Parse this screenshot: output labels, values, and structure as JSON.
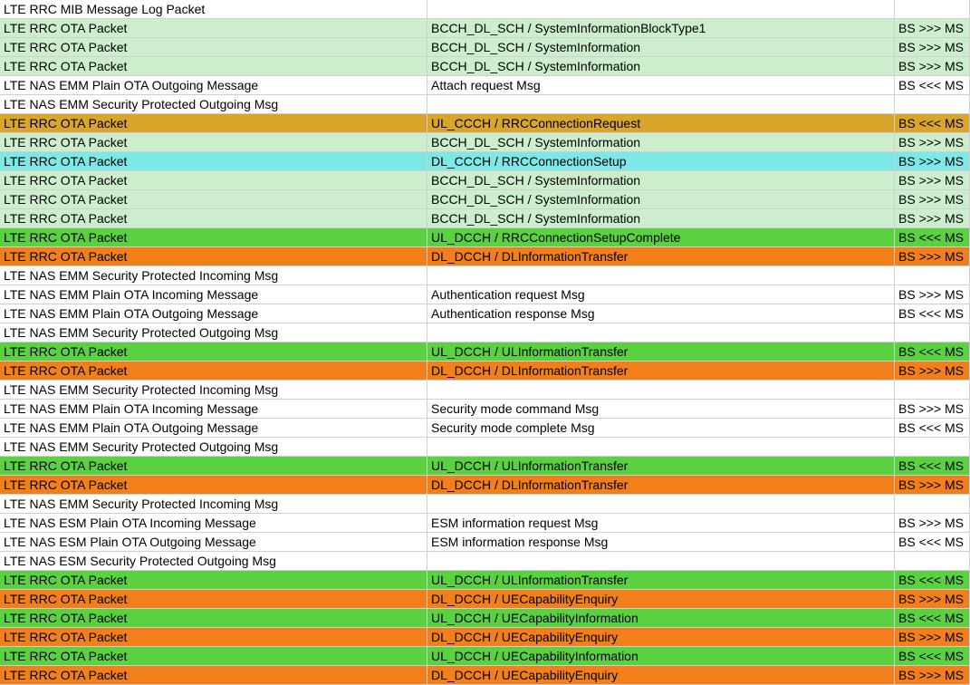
{
  "colors": {
    "white": "#ffffff",
    "paleGreen": "#cceecc",
    "gold": "#d9a52b",
    "cyan": "#7de8e8",
    "brightGreen": "#5ad141",
    "orange": "#f27f1a",
    "text": "#000000"
  },
  "columns": [
    "msg_type",
    "detail",
    "direction"
  ],
  "rows": [
    {
      "bg": "white",
      "c1": "LTE RRC MIB Message Log Packet",
      "c2": "",
      "c3": ""
    },
    {
      "bg": "paleGreen",
      "c1": "LTE RRC OTA Packet",
      "c2": "BCCH_DL_SCH / SystemInformationBlockType1",
      "c3": "BS >>> MS"
    },
    {
      "bg": "paleGreen",
      "c1": "LTE RRC OTA Packet",
      "c2": "BCCH_DL_SCH / SystemInformation",
      "c3": "BS >>> MS"
    },
    {
      "bg": "paleGreen",
      "c1": "LTE RRC OTA Packet",
      "c2": "BCCH_DL_SCH / SystemInformation",
      "c3": "BS >>> MS"
    },
    {
      "bg": "white",
      "c1": "LTE NAS EMM Plain OTA Outgoing Message",
      "c2": "Attach request Msg",
      "c3": "BS <<< MS"
    },
    {
      "bg": "white",
      "c1": "LTE NAS EMM Security Protected Outgoing Msg",
      "c2": "",
      "c3": ""
    },
    {
      "bg": "gold",
      "c1": "LTE RRC OTA Packet",
      "c2": "UL_CCCH / RRCConnectionRequest",
      "c3": "BS <<< MS"
    },
    {
      "bg": "paleGreen",
      "c1": "LTE RRC OTA Packet",
      "c2": "BCCH_DL_SCH / SystemInformation",
      "c3": "BS >>> MS"
    },
    {
      "bg": "cyan",
      "c1": "LTE RRC OTA Packet",
      "c2": "DL_CCCH / RRCConnectionSetup",
      "c3": "BS >>> MS"
    },
    {
      "bg": "paleGreen",
      "c1": "LTE RRC OTA Packet",
      "c2": "BCCH_DL_SCH / SystemInformation",
      "c3": "BS >>> MS"
    },
    {
      "bg": "paleGreen",
      "c1": "LTE RRC OTA Packet",
      "c2": "BCCH_DL_SCH / SystemInformation",
      "c3": "BS >>> MS"
    },
    {
      "bg": "paleGreen",
      "c1": "LTE RRC OTA Packet",
      "c2": "BCCH_DL_SCH / SystemInformation",
      "c3": "BS >>> MS"
    },
    {
      "bg": "brightGreen",
      "c1": "LTE RRC OTA Packet",
      "c2": "UL_DCCH / RRCConnectionSetupComplete",
      "c3": "BS <<< MS"
    },
    {
      "bg": "orange",
      "c1": "LTE RRC OTA Packet",
      "c2": "DL_DCCH / DLInformationTransfer",
      "c3": "BS >>> MS"
    },
    {
      "bg": "white",
      "c1": "LTE NAS EMM Security Protected Incoming Msg",
      "c2": "",
      "c3": ""
    },
    {
      "bg": "white",
      "c1": "LTE NAS EMM Plain OTA Incoming Message",
      "c2": "Authentication request Msg",
      "c3": "BS >>> MS"
    },
    {
      "bg": "white",
      "c1": "LTE NAS EMM Plain OTA Outgoing Message",
      "c2": "Authentication response Msg",
      "c3": "BS <<< MS"
    },
    {
      "bg": "white",
      "c1": "LTE NAS EMM Security Protected Outgoing Msg",
      "c2": "",
      "c3": ""
    },
    {
      "bg": "brightGreen",
      "c1": "LTE RRC OTA Packet",
      "c2": "UL_DCCH / ULInformationTransfer",
      "c3": "BS <<< MS"
    },
    {
      "bg": "orange",
      "c1": "LTE RRC OTA Packet",
      "c2": "DL_DCCH / DLInformationTransfer",
      "c3": "BS >>> MS"
    },
    {
      "bg": "white",
      "c1": "LTE NAS EMM Security Protected Incoming Msg",
      "c2": "",
      "c3": ""
    },
    {
      "bg": "white",
      "c1": "LTE NAS EMM Plain OTA Incoming Message",
      "c2": "Security mode command Msg",
      "c3": "BS >>> MS"
    },
    {
      "bg": "white",
      "c1": "LTE NAS EMM Plain OTA Outgoing Message",
      "c2": "Security mode complete Msg",
      "c3": "BS <<< MS"
    },
    {
      "bg": "white",
      "c1": "LTE NAS EMM Security Protected Outgoing Msg",
      "c2": "",
      "c3": ""
    },
    {
      "bg": "brightGreen",
      "c1": "LTE RRC OTA Packet",
      "c2": "UL_DCCH / ULInformationTransfer",
      "c3": "BS <<< MS"
    },
    {
      "bg": "orange",
      "c1": "LTE RRC OTA Packet",
      "c2": "DL_DCCH / DLInformationTransfer",
      "c3": "BS >>> MS"
    },
    {
      "bg": "white",
      "c1": "LTE NAS EMM Security Protected Incoming Msg",
      "c2": "",
      "c3": ""
    },
    {
      "bg": "white",
      "c1": "LTE NAS ESM Plain OTA Incoming Message",
      "c2": "ESM information request Msg",
      "c3": "BS >>> MS"
    },
    {
      "bg": "white",
      "c1": "LTE NAS ESM Plain OTA Outgoing Message",
      "c2": "ESM information response Msg",
      "c3": "BS <<< MS"
    },
    {
      "bg": "white",
      "c1": "LTE NAS ESM Security Protected Outgoing Msg",
      "c2": "",
      "c3": ""
    },
    {
      "bg": "brightGreen",
      "c1": "LTE RRC OTA Packet",
      "c2": "UL_DCCH / ULInformationTransfer",
      "c3": "BS <<< MS"
    },
    {
      "bg": "orange",
      "c1": "LTE RRC OTA Packet",
      "c2": "DL_DCCH / UECapabilityEnquiry",
      "c3": "BS >>> MS"
    },
    {
      "bg": "brightGreen",
      "c1": "LTE RRC OTA Packet",
      "c2": "UL_DCCH / UECapabilityInformation",
      "c3": "BS <<< MS"
    },
    {
      "bg": "orange",
      "c1": "LTE RRC OTA Packet",
      "c2": "DL_DCCH / UECapabilityEnquiry",
      "c3": "BS >>> MS"
    },
    {
      "bg": "brightGreen",
      "c1": "LTE RRC OTA Packet",
      "c2": "UL_DCCH / UECapabilityInformation",
      "c3": "BS <<< MS"
    },
    {
      "bg": "orange",
      "c1": "LTE RRC OTA Packet",
      "c2": "DL_DCCH / UECapabilityEnquiry",
      "c3": "BS >>> MS"
    }
  ]
}
